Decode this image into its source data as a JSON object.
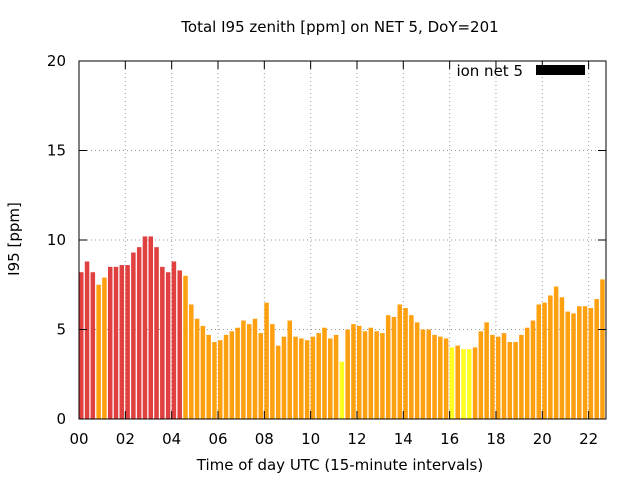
{
  "chart_data": {
    "type": "bar",
    "title": "Total I95 zenith [ppm] on NET 5, DoY=201",
    "xlabel": "Time of day UTC (15-minute intervals)",
    "ylabel": "I95 [ppm]",
    "ylim": [
      0,
      20
    ],
    "yticks": [
      "0",
      "5",
      "10",
      "15",
      "20"
    ],
    "xlim_hours": [
      0,
      22.75
    ],
    "xticks": [
      {
        "hour": 0,
        "label": "00"
      },
      {
        "hour": 2,
        "label": "02"
      },
      {
        "hour": 4,
        "label": "04"
      },
      {
        "hour": 6,
        "label": "06"
      },
      {
        "hour": 8,
        "label": "08"
      },
      {
        "hour": 10,
        "label": "10"
      },
      {
        "hour": 12,
        "label": "12"
      },
      {
        "hour": 14,
        "label": "14"
      },
      {
        "hour": 16,
        "label": "16"
      },
      {
        "hour": 18,
        "label": "18"
      },
      {
        "hour": 20,
        "label": "20"
      },
      {
        "hour": 22,
        "label": "22"
      }
    ],
    "interval_hours": 0.25,
    "grid": true,
    "legend": {
      "label": "ion net 5",
      "position": "top-right",
      "color": "#000000"
    },
    "colors": {
      "red": "#e04040",
      "orange": "#ffa010",
      "yellow": "#ffff20"
    },
    "series": [
      {
        "name": "ion net 5",
        "values": [
          8.2,
          8.8,
          8.2,
          7.5,
          7.9,
          8.5,
          8.5,
          8.6,
          8.6,
          9.3,
          9.6,
          10.2,
          10.2,
          9.6,
          8.5,
          8.2,
          8.8,
          8.3,
          8.0,
          6.4,
          5.6,
          5.2,
          4.7,
          4.3,
          4.4,
          4.7,
          4.9,
          5.1,
          5.5,
          5.3,
          5.6,
          4.8,
          6.5,
          5.3,
          4.1,
          4.6,
          5.5,
          4.6,
          4.5,
          4.4,
          4.6,
          4.8,
          5.1,
          4.5,
          4.7,
          3.2,
          5.0,
          5.3,
          5.2,
          4.9,
          5.1,
          4.9,
          4.8,
          5.8,
          5.7,
          6.4,
          6.2,
          5.8,
          5.4,
          5.0,
          5.0,
          4.7,
          4.6,
          4.5,
          4.0,
          4.1,
          3.9,
          3.9,
          4.0,
          4.9,
          5.4,
          4.7,
          4.6,
          4.8,
          4.3,
          4.3,
          4.7,
          5.1,
          5.5,
          6.4,
          6.5,
          6.9,
          7.4,
          6.8,
          6.0,
          5.9,
          6.3,
          6.3,
          6.2,
          6.7,
          7.8
        ],
        "colors": [
          "red",
          "red",
          "red",
          "orange",
          "orange",
          "red",
          "red",
          "red",
          "red",
          "red",
          "red",
          "red",
          "red",
          "red",
          "red",
          "red",
          "red",
          "red",
          "orange",
          "orange",
          "orange",
          "orange",
          "orange",
          "orange",
          "orange",
          "orange",
          "orange",
          "orange",
          "orange",
          "orange",
          "orange",
          "orange",
          "orange",
          "orange",
          "orange",
          "orange",
          "orange",
          "orange",
          "orange",
          "orange",
          "orange",
          "orange",
          "orange",
          "orange",
          "orange",
          "yellow",
          "orange",
          "orange",
          "orange",
          "orange",
          "orange",
          "orange",
          "orange",
          "orange",
          "orange",
          "orange",
          "orange",
          "orange",
          "orange",
          "orange",
          "orange",
          "orange",
          "orange",
          "orange",
          "yellow",
          "orange",
          "yellow",
          "yellow",
          "orange",
          "orange",
          "orange",
          "orange",
          "orange",
          "orange",
          "orange",
          "orange",
          "orange",
          "orange",
          "orange",
          "orange",
          "orange",
          "orange",
          "orange",
          "orange",
          "orange",
          "orange",
          "orange",
          "orange",
          "orange",
          "orange",
          "orange"
        ]
      }
    ]
  }
}
